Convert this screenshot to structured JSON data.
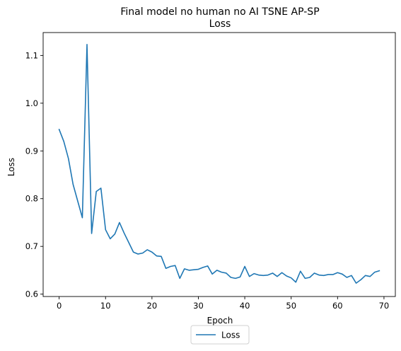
{
  "chart_data": {
    "type": "line",
    "title": "Final model no human no AI TSNE AP-SP",
    "subtitle": "Loss",
    "xlabel": "Epoch",
    "ylabel": "Loss",
    "xlim": [
      -3.45,
      72.45
    ],
    "ylim": [
      0.595,
      1.148
    ],
    "xticks": [
      0,
      10,
      20,
      30,
      40,
      50,
      60,
      70
    ],
    "yticks": [
      0.6,
      0.7,
      0.8,
      0.9,
      1.0,
      1.1
    ],
    "grid": false,
    "legend_position": "bottom-center",
    "series": [
      {
        "name": "Loss",
        "color": "#1f77b4",
        "x": [
          0,
          1,
          2,
          3,
          4,
          5,
          6,
          7,
          8,
          9,
          10,
          11,
          12,
          13,
          14,
          15,
          16,
          17,
          18,
          19,
          20,
          21,
          22,
          23,
          24,
          25,
          26,
          27,
          28,
          29,
          30,
          31,
          32,
          33,
          34,
          35,
          36,
          37,
          38,
          39,
          40,
          41,
          42,
          43,
          44,
          45,
          46,
          47,
          48,
          49,
          50,
          51,
          52,
          53,
          54,
          55,
          56,
          57,
          58,
          59,
          60,
          61,
          62,
          63,
          64,
          65,
          66,
          67,
          68,
          69
        ],
        "y": [
          0.945,
          0.92,
          0.884,
          0.83,
          0.795,
          0.76,
          1.123,
          0.727,
          0.815,
          0.822,
          0.735,
          0.716,
          0.726,
          0.75,
          0.728,
          0.708,
          0.688,
          0.684,
          0.686,
          0.693,
          0.688,
          0.68,
          0.679,
          0.654,
          0.658,
          0.66,
          0.633,
          0.653,
          0.65,
          0.651,
          0.652,
          0.656,
          0.659,
          0.642,
          0.65,
          0.646,
          0.644,
          0.635,
          0.633,
          0.636,
          0.658,
          0.637,
          0.643,
          0.64,
          0.639,
          0.64,
          0.644,
          0.637,
          0.645,
          0.638,
          0.634,
          0.625,
          0.648,
          0.633,
          0.635,
          0.644,
          0.64,
          0.639,
          0.641,
          0.641,
          0.645,
          0.642,
          0.635,
          0.639,
          0.623,
          0.63,
          0.639,
          0.637,
          0.646,
          0.649
        ]
      }
    ]
  }
}
